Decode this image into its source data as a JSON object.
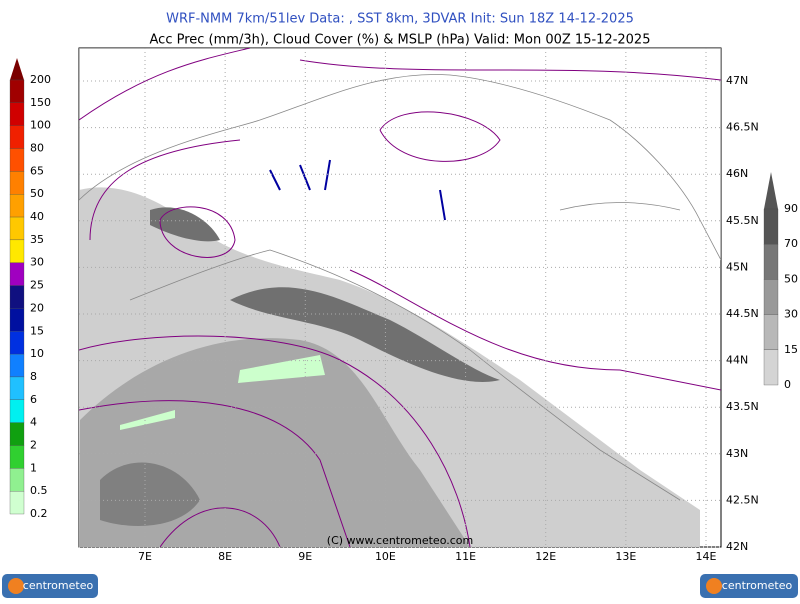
{
  "header": {
    "line1": "WRF-NMM 7km/51lev   Data: , SST 8km, 3DVAR   Init: Sun 18Z 14-12-2025",
    "line2": "Acc Prec (mm/3h), Cloud Cover (%) & MSLP (hPa)  Valid: Mon 00Z 15-12-2025"
  },
  "precip_legend": {
    "labels": [
      "200",
      "150",
      "100",
      "80",
      "65",
      "50",
      "40",
      "35",
      "30",
      "25",
      "20",
      "15",
      "10",
      "8",
      "6",
      "4",
      "2",
      "1",
      "0.5",
      "0.2"
    ],
    "colors": [
      "#7a0000",
      "#a00000",
      "#d00000",
      "#f02000",
      "#ff5000",
      "#ff8000",
      "#ffa000",
      "#ffc800",
      "#ffe800",
      "#a000c0",
      "#101080",
      "#0010a0",
      "#0030e0",
      "#1080ff",
      "#20c0ff",
      "#00f0f0",
      "#10a010",
      "#30d030",
      "#90f090",
      "#d0ffd0"
    ]
  },
  "cloud_legend": {
    "labels": [
      "90",
      "70",
      "50",
      "30",
      "15",
      "0"
    ],
    "colors": [
      "#555555",
      "#777777",
      "#999999",
      "#b8b8b8",
      "#d4d4d4",
      "#eeeeee"
    ]
  },
  "map": {
    "lon_labels": [
      "7E",
      "8E",
      "9E",
      "10E",
      "11E",
      "12E",
      "13E",
      "14E"
    ],
    "lat_labels": [
      "47N",
      "46.5N",
      "46N",
      "45.5N",
      "45N",
      "44.5N",
      "44N",
      "43.5N",
      "43N",
      "42.5N",
      "42N"
    ],
    "copyright": "(C) www.centrometeo.com"
  },
  "logo_text": "centrometeo"
}
